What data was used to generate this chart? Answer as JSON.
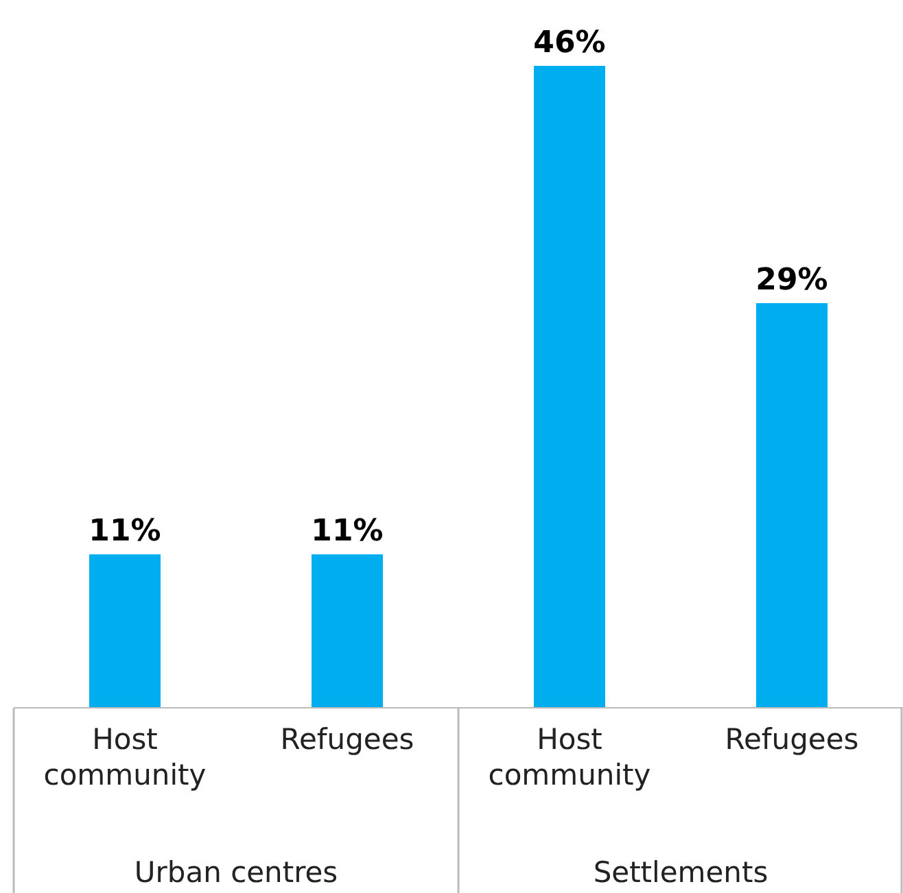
{
  "chart_data": {
    "type": "bar",
    "categories": [
      "Host community",
      "Refugees",
      "Host community",
      "Refugees"
    ],
    "values": [
      11,
      11,
      46,
      29
    ],
    "value_labels": [
      "11%",
      "11%",
      "46%",
      "29%"
    ],
    "color": "#00aeef",
    "annotations": [
      "Urban centres",
      "Settlements"
    ]
  }
}
